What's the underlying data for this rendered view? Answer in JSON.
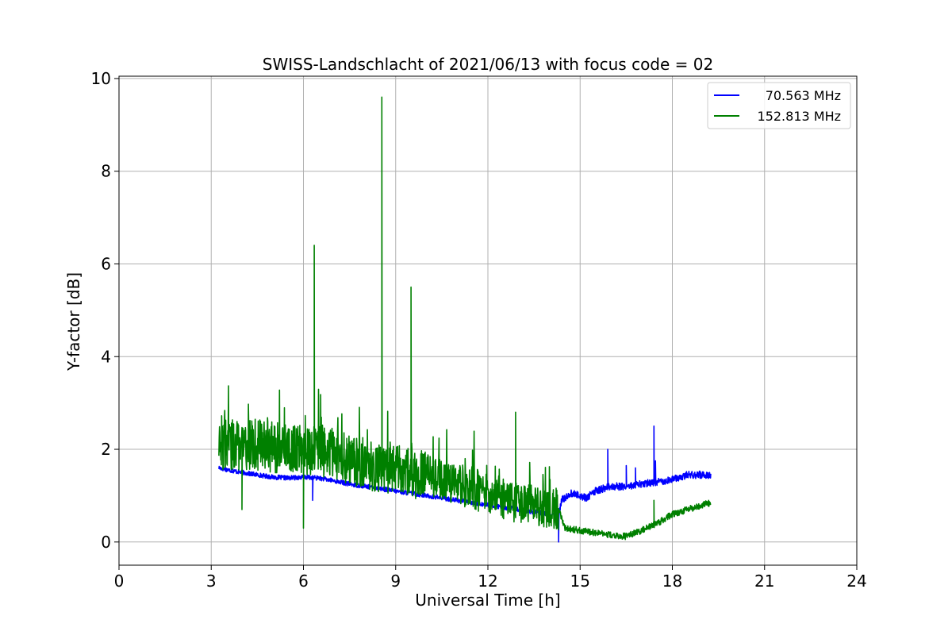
{
  "chart_data": {
    "type": "line",
    "title": "SWISS-Landschlacht of 2021/06/13 with focus code = 02",
    "xlabel": "Universal Time [h]",
    "ylabel": "Y-factor [dB]",
    "xlim": [
      0,
      24
    ],
    "ylim": [
      -0.5,
      10.05
    ],
    "xticks": [
      0,
      3,
      6,
      9,
      12,
      15,
      18,
      21,
      24
    ],
    "yticks": [
      0,
      2,
      4,
      6,
      8,
      10
    ],
    "grid": true,
    "legend_position": "top-right",
    "series": [
      {
        "name": "70.563 MHz",
        "color": "#0000ff",
        "points": [
          [
            3.25,
            1.6
          ],
          [
            3.6,
            1.55
          ],
          [
            4.0,
            1.5
          ],
          [
            4.5,
            1.45
          ],
          [
            5.0,
            1.4
          ],
          [
            5.5,
            1.38
          ],
          [
            6.0,
            1.4
          ],
          [
            6.5,
            1.38
          ],
          [
            7.0,
            1.32
          ],
          [
            7.5,
            1.25
          ],
          [
            8.0,
            1.2
          ],
          [
            8.5,
            1.15
          ],
          [
            9.0,
            1.1
          ],
          [
            9.5,
            1.05
          ],
          [
            10.0,
            1.0
          ],
          [
            10.5,
            0.95
          ],
          [
            11.0,
            0.9
          ],
          [
            11.5,
            0.85
          ],
          [
            12.0,
            0.8
          ],
          [
            12.5,
            0.75
          ],
          [
            13.0,
            0.7
          ],
          [
            13.5,
            0.65
          ],
          [
            14.0,
            0.6
          ],
          [
            14.3,
            0.55
          ],
          [
            14.4,
            0.9
          ],
          [
            14.7,
            1.05
          ],
          [
            15.0,
            1.0
          ],
          [
            15.2,
            0.95
          ],
          [
            15.5,
            1.1
          ],
          [
            16.0,
            1.2
          ],
          [
            16.5,
            1.2
          ],
          [
            17.0,
            1.25
          ],
          [
            17.5,
            1.3
          ],
          [
            18.0,
            1.35
          ],
          [
            18.5,
            1.45
          ],
          [
            19.0,
            1.45
          ],
          [
            19.25,
            1.45
          ]
        ],
        "spikes": [
          [
            15.9,
            2.0
          ],
          [
            17.4,
            2.5
          ],
          [
            17.45,
            1.75
          ],
          [
            16.5,
            1.65
          ],
          [
            16.8,
            1.6
          ],
          [
            6.3,
            0.9
          ],
          [
            14.3,
            0.0
          ]
        ]
      },
      {
        "name": "152.813 MHz",
        "color": "#008000",
        "points": [
          [
            3.25,
            2.1
          ],
          [
            3.6,
            2.1
          ],
          [
            4.0,
            2.1
          ],
          [
            4.5,
            2.1
          ],
          [
            5.0,
            2.05
          ],
          [
            5.5,
            2.0
          ],
          [
            6.0,
            2.0
          ],
          [
            6.5,
            1.95
          ],
          [
            7.0,
            1.9
          ],
          [
            7.5,
            1.8
          ],
          [
            8.0,
            1.7
          ],
          [
            8.5,
            1.6
          ],
          [
            9.0,
            1.55
          ],
          [
            9.5,
            1.5
          ],
          [
            10.0,
            1.45
          ],
          [
            10.5,
            1.35
          ],
          [
            11.0,
            1.25
          ],
          [
            11.5,
            1.15
          ],
          [
            12.0,
            1.05
          ],
          [
            12.5,
            0.95
          ],
          [
            13.0,
            0.85
          ],
          [
            13.5,
            0.8
          ],
          [
            14.0,
            0.75
          ],
          [
            14.3,
            0.7
          ],
          [
            14.5,
            0.3
          ],
          [
            15.0,
            0.25
          ],
          [
            15.5,
            0.2
          ],
          [
            16.0,
            0.15
          ],
          [
            16.5,
            0.12
          ],
          [
            17.0,
            0.25
          ],
          [
            17.5,
            0.4
          ],
          [
            18.0,
            0.6
          ],
          [
            18.5,
            0.7
          ],
          [
            19.0,
            0.8
          ],
          [
            19.25,
            0.85
          ]
        ],
        "spikes": [
          [
            6.35,
            6.4
          ],
          [
            8.55,
            9.6
          ],
          [
            9.5,
            5.5
          ],
          [
            12.9,
            2.8
          ],
          [
            6.0,
            0.3
          ],
          [
            4.0,
            0.7
          ],
          [
            17.4,
            0.9
          ]
        ]
      }
    ]
  }
}
